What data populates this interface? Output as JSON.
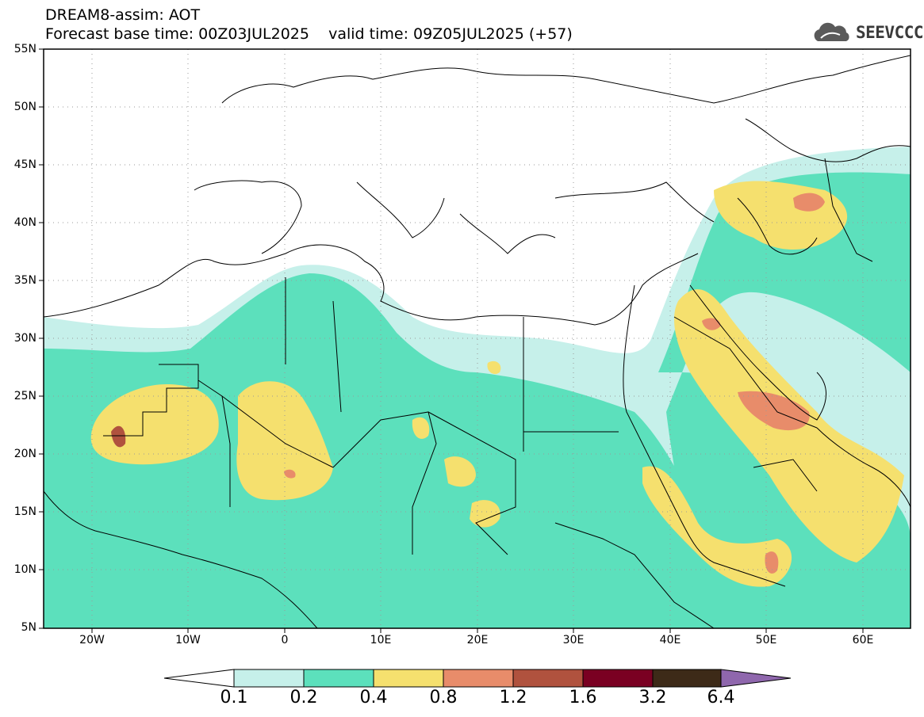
{
  "header": {
    "title_line1": "DREAM8-assim: AOT",
    "title_line2": "Forecast base time: 00Z03JUL2025    valid time: 09Z05JUL2025 (+57)",
    "logo_text": "SEEVCCC"
  },
  "map": {
    "lat_labels": [
      "55N",
      "50N",
      "45N",
      "40N",
      "35N",
      "30N",
      "25N",
      "20N",
      "15N",
      "10N",
      "5N"
    ],
    "lon_labels": [
      "20W",
      "10W",
      "0",
      "10E",
      "20E",
      "30E",
      "40E",
      "50E",
      "60E"
    ],
    "grid": "dotted"
  },
  "colorbar": {
    "levels": [
      "0.1",
      "0.2",
      "0.4",
      "0.8",
      "1.2",
      "1.6",
      "3.2",
      "6.4"
    ],
    "colors": [
      "#ffffff",
      "#c6f0ea",
      "#5ce0bc",
      "#f5e06e",
      "#e88c6a",
      "#b0523e",
      "#7a0022",
      "#3d2a18",
      "#8f67ad"
    ]
  }
}
